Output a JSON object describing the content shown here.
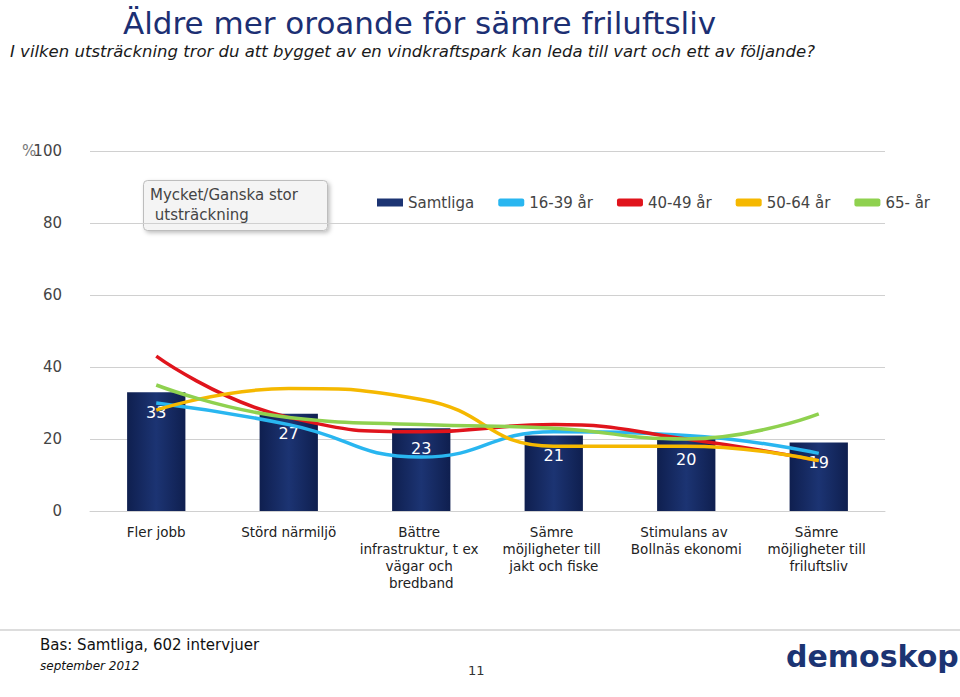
{
  "chart_data": {
    "type": "bar",
    "title": "Äldre mer oroande för sämre friluftsliv",
    "subtitle": "I vilken utsträckning tror du att bygget av en vindkraftspark kan leda till vart och ett av följande?",
    "y_label": "%",
    "legend_title": "Mycket/Ganska stor utsträckning",
    "categories": [
      "Fler jobb",
      "Störd närmiljö",
      "Bättre infrastruktur, t ex vägar och bredband",
      "Sämre möjligheter till jakt och fiske",
      "Stimulans av Bollnäs ekonomi",
      "Sämre möjligheter till friluftsliv"
    ],
    "series": [
      {
        "name": "Samtliga",
        "type": "bar",
        "color": "#1c3473",
        "values": [
          33,
          27,
          23,
          21,
          20,
          19
        ]
      },
      {
        "name": "16-39 år",
        "type": "line",
        "color": "#29b6f0",
        "marker": "none",
        "line_style": "smooth",
        "values": [
          30,
          24,
          15,
          22,
          21,
          16
        ]
      },
      {
        "name": "40-49 år",
        "type": "line",
        "color": "#e0141c",
        "marker": "none",
        "line_style": "smooth",
        "values": [
          43,
          26,
          22,
          24,
          20,
          14
        ]
      },
      {
        "name": "50-64 år",
        "type": "line",
        "color": "#f5b800",
        "marker": "none",
        "line_style": "smooth",
        "values": [
          28,
          34,
          31,
          18,
          18,
          14
        ]
      },
      {
        "name": "65- år",
        "type": "line",
        "color": "#8fd14f",
        "marker": "none",
        "line_style": "smooth",
        "values": [
          35,
          26,
          24,
          23,
          20,
          27
        ]
      }
    ],
    "ylim": [
      0,
      100
    ],
    "yticks": [
      0,
      20,
      40,
      60,
      80,
      100
    ],
    "grid": true,
    "data_labels": true,
    "source": "Bas: Samtliga, 602 intervjuer",
    "date": "september 2012",
    "page": "11",
    "logo": "demoskop"
  }
}
